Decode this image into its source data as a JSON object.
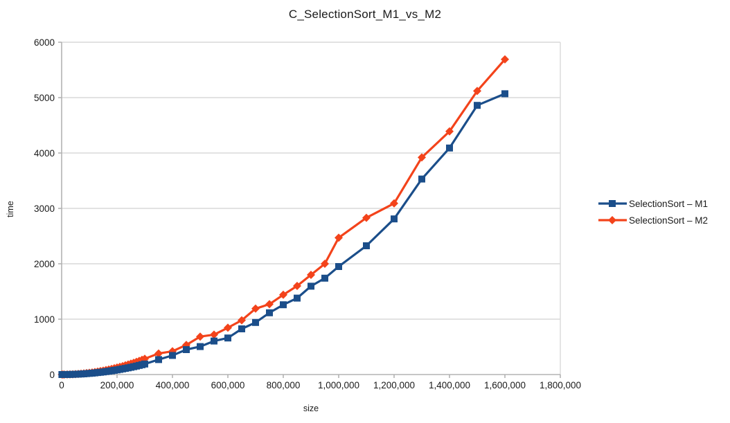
{
  "page": {
    "background": "#ffffff"
  },
  "chart_data": {
    "type": "line",
    "title": "C_SelectionSort_M1_vs_M2",
    "xlabel": "size",
    "ylabel": "time",
    "xlim": [
      0,
      1800000
    ],
    "ylim": [
      0,
      6000
    ],
    "grid": "horizontal",
    "legend_position": "right",
    "grid_color": "#d9d9d9",
    "axis_color": "#b3b3b3",
    "text_color": "#1a1a1a",
    "x_tick_values": [
      0,
      200000,
      400000,
      600000,
      800000,
      1000000,
      1200000,
      1400000,
      1600000,
      1800000
    ],
    "x_tick_labels": [
      "0",
      "200,000",
      "400,000",
      "600,000",
      "800,000",
      "1,000,000",
      "1,200,000",
      "1,400,000",
      "1,600,000",
      "1,800,000"
    ],
    "y_tick_values": [
      0,
      1000,
      2000,
      3000,
      4000,
      5000,
      6000
    ],
    "y_tick_labels": [
      "0",
      "1000",
      "2000",
      "3000",
      "4000",
      "5000",
      "6000"
    ],
    "x": [
      1000,
      5000,
      10000,
      20000,
      30000,
      40000,
      50000,
      60000,
      70000,
      80000,
      90000,
      100000,
      110000,
      120000,
      130000,
      140000,
      150000,
      160000,
      170000,
      180000,
      190000,
      200000,
      210000,
      220000,
      230000,
      240000,
      250000,
      260000,
      270000,
      280000,
      290000,
      300000,
      350000,
      400000,
      450000,
      500000,
      550000,
      600000,
      650000,
      700000,
      750000,
      800000,
      850000,
      900000,
      950000,
      1000000,
      1100000,
      1200000,
      1300000,
      1400000,
      1500000,
      1600000
    ],
    "series": [
      {
        "name": "SelectionSort – M1",
        "color": "#1b4e8a",
        "marker": "square",
        "values": [
          0,
          0.1,
          0.2,
          0.8,
          1.9,
          3.4,
          5.3,
          7.6,
          10,
          13,
          17,
          21,
          25,
          30,
          36,
          41,
          47,
          54,
          61,
          68,
          76,
          84,
          93,
          102,
          111,
          121,
          131,
          142,
          153,
          165,
          177,
          190,
          270,
          345,
          450,
          505,
          605,
          660,
          825,
          940,
          1115,
          1260,
          1380,
          1595,
          1740,
          1950,
          2325,
          2810,
          3530,
          4090,
          4860,
          5070
        ]
      },
      {
        "name": "SelectionSort – M2",
        "color": "#f3431b",
        "marker": "diamond",
        "values": [
          0,
          0.1,
          0.3,
          1.3,
          2.8,
          5,
          7.9,
          11,
          15,
          20,
          26,
          32,
          38,
          45,
          53,
          62,
          71,
          81,
          91,
          102,
          114,
          126,
          139,
          152,
          167,
          181,
          197,
          213,
          230,
          247,
          265,
          285,
          380,
          420,
          535,
          685,
          720,
          845,
          980,
          1190,
          1270,
          1440,
          1600,
          1800,
          2000,
          2470,
          2830,
          3090,
          3920,
          4390,
          5120,
          5690
        ]
      }
    ]
  }
}
